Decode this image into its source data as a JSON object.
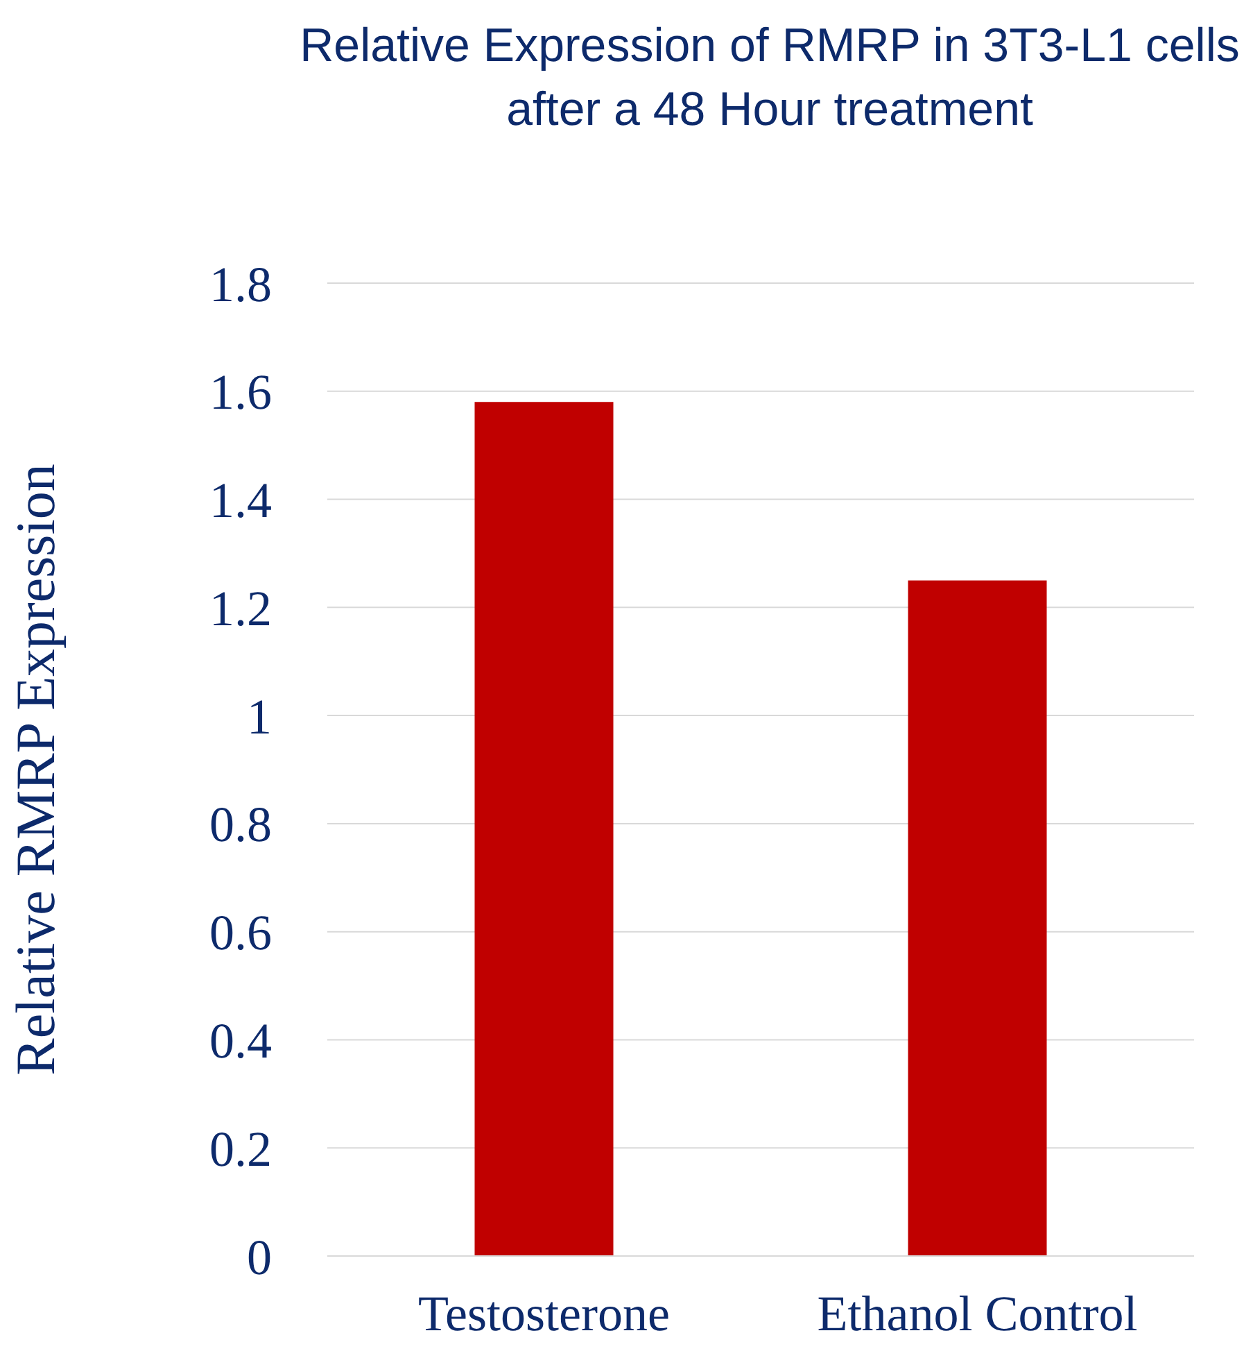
{
  "chart_data": {
    "type": "bar",
    "title": "Relative Expression of RMRP in 3T3-L1 cells after a 48 Hour treatment",
    "ylabel": "Relative RMRP Expression",
    "categories": [
      "Testosterone",
      "Ethanol Control"
    ],
    "values": [
      1.58,
      1.25
    ],
    "color": "#c00000",
    "ylim": [
      0,
      1.8
    ],
    "yticks": [
      0,
      0.2,
      0.4,
      0.6,
      0.8,
      1,
      1.2,
      1.4,
      1.6,
      1.8
    ],
    "grid": "y"
  }
}
